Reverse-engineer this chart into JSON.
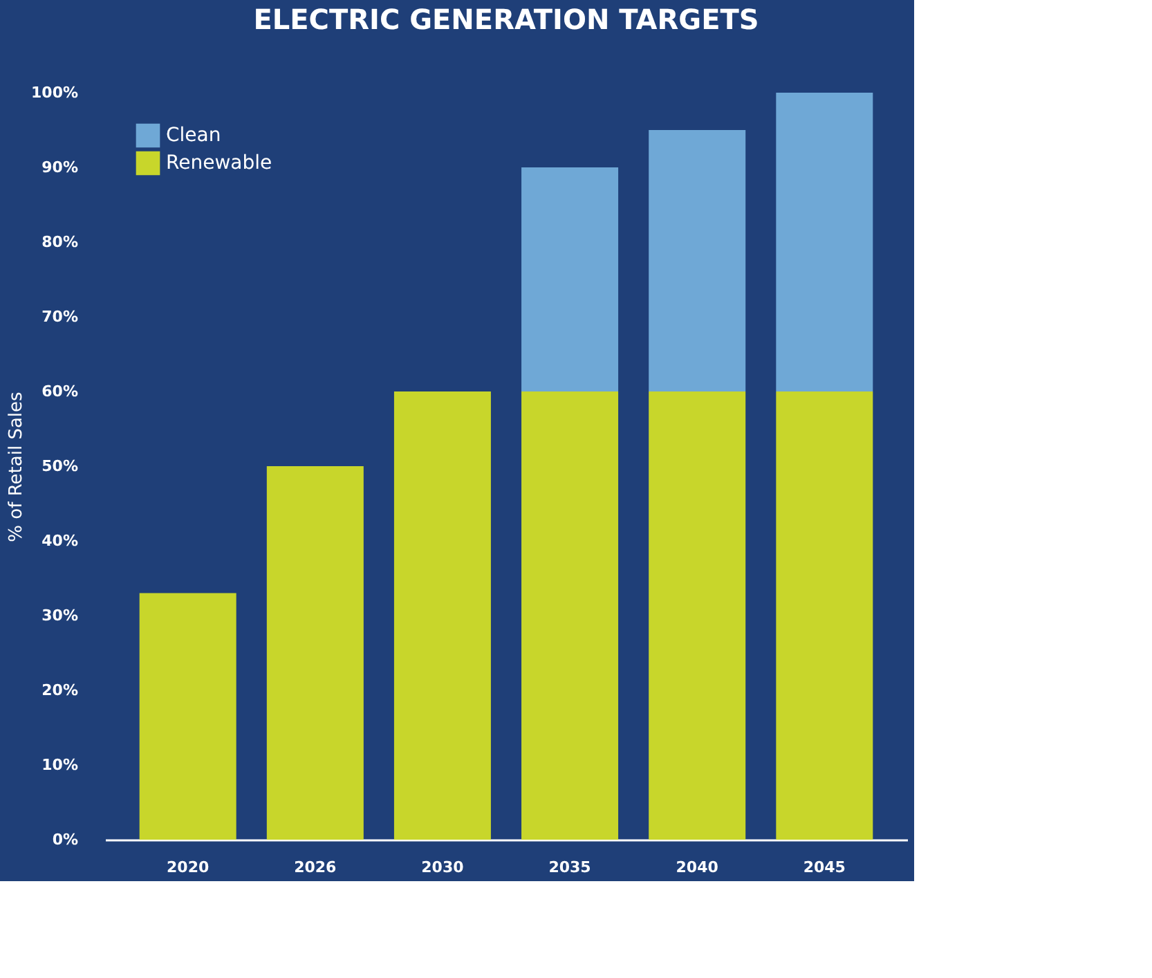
{
  "chart_data": {
    "type": "bar",
    "title": "ELECTRIC GENERATION TARGETS",
    "ylabel": "% of Retail Sales",
    "categories": [
      "2020",
      "2026",
      "2030",
      "2035",
      "2040",
      "2045"
    ],
    "stacked": true,
    "series": [
      {
        "name": "Renewable",
        "color": "#c8d62b",
        "values": [
          33,
          50,
          60,
          60,
          60,
          60
        ]
      },
      {
        "name": "Clean",
        "color": "#6fa8d6",
        "values": [
          null,
          null,
          null,
          30,
          35,
          40
        ]
      }
    ],
    "ylim": [
      0,
      100
    ],
    "yticks": [
      {
        "value": 0,
        "label": "0%"
      },
      {
        "value": 10,
        "label": "10%"
      },
      {
        "value": 20,
        "label": "20%"
      },
      {
        "value": 30,
        "label": "30%"
      },
      {
        "value": 40,
        "label": "40%"
      },
      {
        "value": 50,
        "label": "50%"
      },
      {
        "value": 60,
        "label": "60%"
      },
      {
        "value": 70,
        "label": "70%"
      },
      {
        "value": 80,
        "label": "80%"
      },
      {
        "value": 90,
        "label": "90%"
      },
      {
        "value": 100,
        "label": "100%"
      }
    ],
    "grid": false,
    "legend": "top left"
  }
}
